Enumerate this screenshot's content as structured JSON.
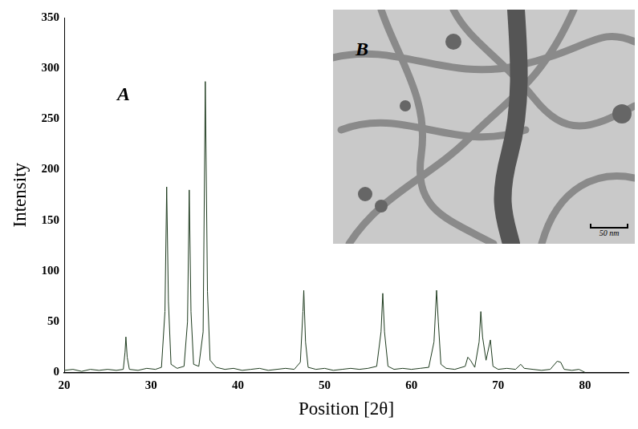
{
  "chart_data": {
    "type": "line",
    "x_label": "Position [2θ]",
    "y_label": "Intensity",
    "annotations": [
      "A"
    ],
    "x": [
      20,
      21,
      22,
      23,
      24,
      25,
      26,
      26.8,
      27.0,
      27.1,
      27.25,
      27.5,
      28.5,
      29.5,
      30.5,
      31.2,
      31.6,
      31.8,
      32.0,
      32.3,
      33.0,
      33.8,
      34.2,
      34.4,
      34.6,
      34.9,
      35.5,
      36.0,
      36.25,
      36.5,
      36.8,
      37.5,
      38.5,
      39.5,
      40.5,
      41.5,
      42.5,
      43.5,
      44.5,
      45.5,
      46.5,
      47.2,
      47.5,
      47.6,
      47.8,
      48.1,
      49,
      50,
      51,
      52,
      53,
      54,
      55,
      56,
      56.5,
      56.7,
      56.9,
      57.3,
      58,
      59,
      60,
      61,
      62,
      62.6,
      62.9,
      63.1,
      63.4,
      64,
      65,
      66.2,
      66.5,
      66.8,
      67.3,
      67.8,
      68.0,
      68.2,
      68.6,
      69.1,
      69.4,
      70,
      71,
      72,
      72.6,
      73,
      74,
      75,
      76,
      76.8,
      77.2,
      77.6,
      78.5,
      79.3,
      80
    ],
    "values": [
      2,
      3,
      1,
      3,
      2,
      3,
      2,
      3,
      20,
      35,
      15,
      3,
      2,
      4,
      3,
      5,
      60,
      183,
      70,
      8,
      4,
      6,
      50,
      180,
      60,
      8,
      6,
      40,
      287,
      80,
      12,
      5,
      3,
      4,
      2,
      3,
      4,
      2,
      3,
      4,
      3,
      10,
      60,
      81,
      30,
      5,
      3,
      4,
      2,
      3,
      4,
      3,
      4,
      6,
      40,
      78,
      40,
      6,
      3,
      4,
      3,
      4,
      5,
      30,
      81,
      50,
      8,
      4,
      3,
      6,
      15,
      12,
      5,
      30,
      60,
      35,
      12,
      32,
      6,
      3,
      4,
      3,
      8,
      4,
      3,
      2,
      3,
      11,
      10,
      3,
      2,
      3,
      0
    ],
    "color": "#1e3b1e",
    "xlim": [
      20,
      85
    ],
    "xticks": [
      20,
      30,
      40,
      50,
      60,
      70,
      80
    ],
    "ylim": [
      0,
      350
    ],
    "yticks": [
      0,
      50,
      100,
      150,
      200,
      250,
      300,
      350
    ],
    "grid": false
  },
  "inset": {
    "label": "B",
    "scale_bar": "50 nm"
  }
}
